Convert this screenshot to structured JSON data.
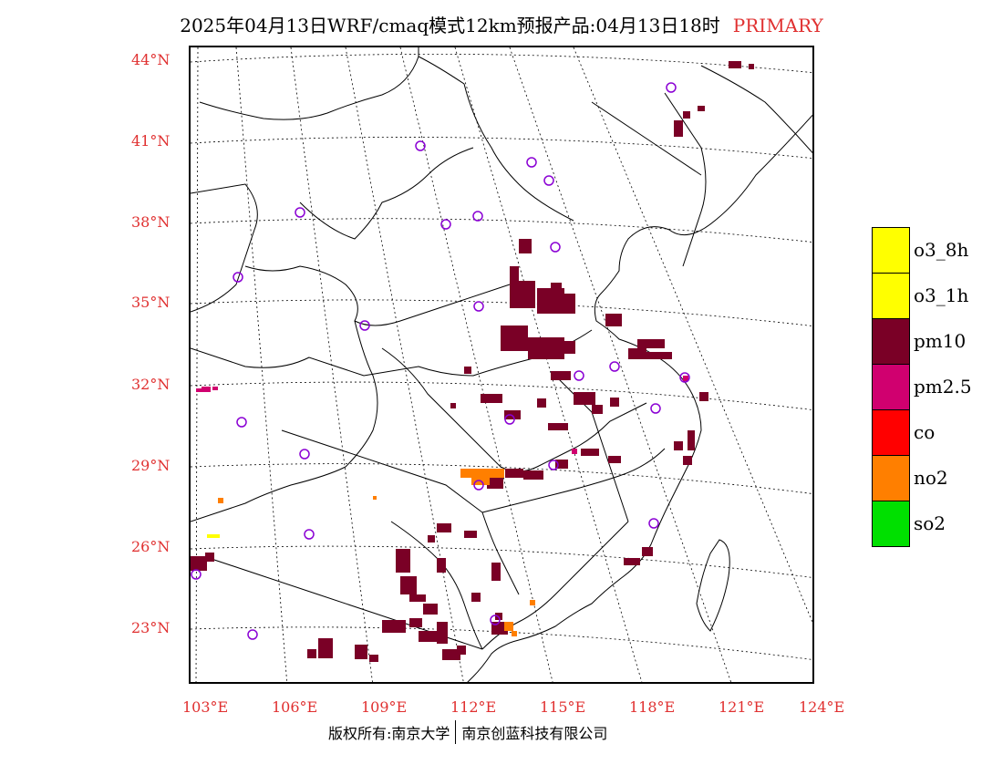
{
  "header": {
    "title": "2025年04月13日WRF/cmaq模式12km预报产品:04月13日18时",
    "product": "PRIMARY"
  },
  "axes": {
    "lat_labels": [
      "44°N",
      "41°N",
      "38°N",
      "35°N",
      "32°N",
      "29°N",
      "26°N",
      "23°N"
    ],
    "lon_labels": [
      "103°E",
      "106°E",
      "109°E",
      "112°E",
      "115°E",
      "118°E",
      "121°E",
      "124°E"
    ],
    "label_color": "#e03030"
  },
  "legend": {
    "items": [
      {
        "label": "o3_8h",
        "color": "#ffff00"
      },
      {
        "label": "o3_1h",
        "color": "#ffff00"
      },
      {
        "label": "pm10",
        "color": "#7a0026"
      },
      {
        "label": "pm2.5",
        "color": "#d0006f"
      },
      {
        "label": "co",
        "color": "#ff0000"
      },
      {
        "label": "no2",
        "color": "#ff7f00"
      },
      {
        "label": "so2",
        "color": "#00e000"
      }
    ]
  },
  "footer": {
    "copyright": "版权所有:南京大学",
    "company": "南京创蓝科技有限公司"
  },
  "map_colors": {
    "station_ring": "#8a00d4",
    "pm10": "#7a0026",
    "no2": "#ff7f00",
    "pm25": "#d0006f",
    "o3": "#ffff00"
  }
}
